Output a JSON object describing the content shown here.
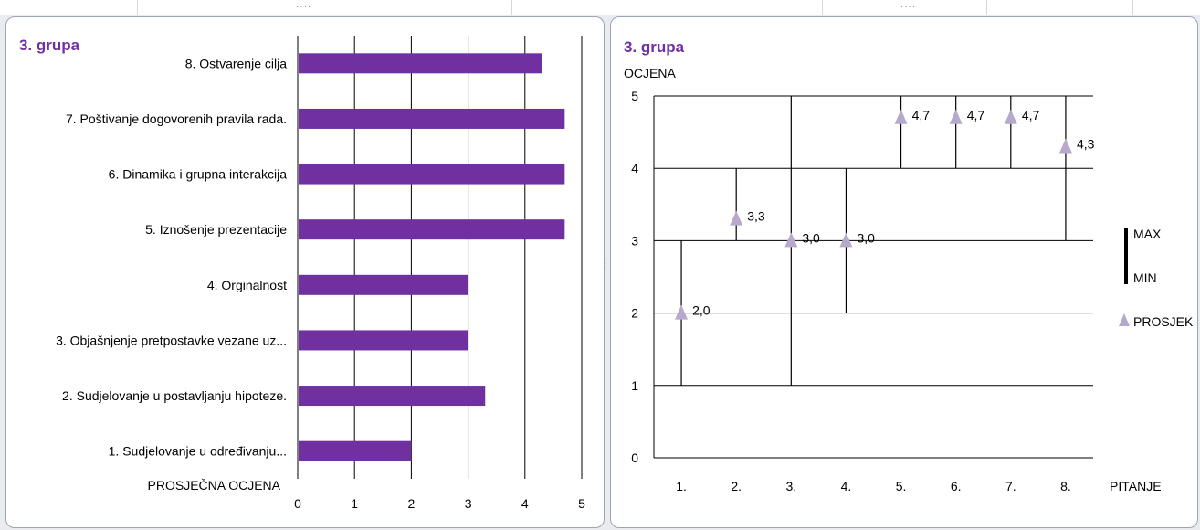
{
  "colors": {
    "bar_fill": "#7030a0",
    "triangle_fill": "#b7a9cc",
    "title": "#7030a0",
    "grid": "#000000"
  },
  "chart_data": [
    {
      "type": "bar",
      "orientation": "horizontal",
      "title": "3. grupa",
      "categories": [
        "8. Ostvarenje cilja",
        "7. Poštivanje dogovorenih pravila rada.",
        "6. Dinamika  i grupna interakcija",
        "5. Iznošenje prezentacije",
        "4. Orginalnost",
        "3. Objašnjenje pretpostavke vezane uz...",
        "2. Sudjelovanje u postavljanju  hipoteze.",
        "1. Sudjelovanje u određivanju..."
      ],
      "values": [
        4.3,
        4.7,
        4.7,
        4.7,
        3.0,
        3.0,
        3.3,
        2.0
      ],
      "xlabel": "PROSJEČNA OCJENA",
      "xlim": [
        0,
        5
      ],
      "xticks": [
        "0",
        "1",
        "2",
        "3",
        "4",
        "5"
      ],
      "grid": "vertical"
    },
    {
      "type": "range",
      "title": "3. grupa",
      "ylabel": "OCJENA",
      "xlabel": "PITANJE",
      "categories": [
        "1.",
        "2.",
        "3.",
        "4.",
        "5.",
        "6.",
        "7.",
        "8."
      ],
      "max": [
        3,
        4,
        5,
        4,
        5,
        5,
        5,
        5
      ],
      "min": [
        1,
        3,
        1,
        2,
        4,
        4,
        4,
        3
      ],
      "mean": [
        2.0,
        3.3,
        3.0,
        3.0,
        4.7,
        4.7,
        4.7,
        4.3
      ],
      "data_labels": [
        "2,0",
        "3,3",
        "3,0",
        "3,0",
        "4,7",
        "4,7",
        "4,7",
        "4,3"
      ],
      "ylim": [
        0,
        5
      ],
      "yticks": [
        "0",
        "1",
        "2",
        "3",
        "4",
        "5"
      ],
      "grid": "horizontal",
      "legend": {
        "position": "right",
        "max_label": "MAX",
        "min_label": "MIN",
        "mean_label": "PROSJEK"
      }
    }
  ]
}
